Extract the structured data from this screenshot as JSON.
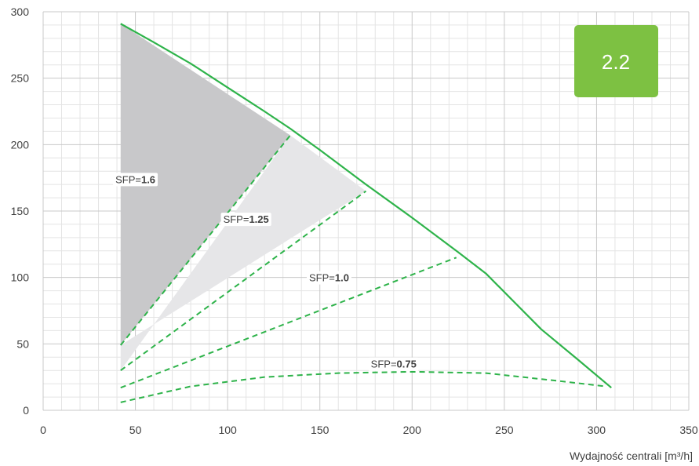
{
  "chart_data": {
    "type": "line",
    "xlabel": "Wydajność centrali [m³/h]",
    "ylabel": "",
    "xlim": [
      0,
      350
    ],
    "ylim": [
      0,
      300
    ],
    "x_ticks": [
      0,
      50,
      100,
      150,
      200,
      250,
      300,
      350
    ],
    "y_ticks": [
      0,
      50,
      100,
      150,
      200,
      250,
      300
    ],
    "x_tick_labels": [
      "0",
      "50",
      "100",
      "150",
      "200",
      "250",
      "300",
      "350"
    ],
    "y_tick_labels": [
      "0",
      "50",
      "100",
      "150",
      "200",
      "250",
      "300"
    ],
    "grid": true,
    "badge": {
      "text": "2.2",
      "color": "#7dc142"
    },
    "colors": {
      "curve": "#2eb34a",
      "dark_area": "#c8c8ca",
      "light_area": "#e6e6e8",
      "grid_major": "#c8c8c8",
      "grid_minor": "#e4e4e4"
    },
    "series": [
      {
        "style": "solid",
        "x": [
          42,
          60,
          80,
          100,
          120,
          134,
          150,
          175,
          200,
          225,
          240,
          255,
          270,
          290,
          308
        ],
        "y": [
          291,
          277,
          261,
          243,
          225,
          212,
          196,
          170,
          145,
          119,
          103,
          82,
          61,
          38,
          17
        ]
      },
      {
        "name": "SFP=1.6",
        "style": "dashed",
        "x": [
          42,
          134
        ],
        "y": [
          49,
          207
        ]
      },
      {
        "name": "SFP=1.25",
        "style": "dashed",
        "x": [
          42,
          175
        ],
        "y": [
          30,
          165
        ]
      },
      {
        "name": "SFP=1.0",
        "style": "dashed",
        "x": [
          42,
          224
        ],
        "y": [
          17,
          115
        ]
      },
      {
        "name": "SFP=0.75",
        "style": "dashed",
        "x": [
          42,
          80,
          120,
          160,
          200,
          240,
          280,
          305
        ],
        "y": [
          6,
          18,
          25,
          28,
          29,
          28,
          22,
          18
        ]
      }
    ],
    "shaded_regions": [
      {
        "fill": "dark",
        "x": [
          42,
          42,
          134
        ],
        "y": [
          49,
          291,
          207
        ]
      },
      {
        "fill": "light",
        "x": [
          42,
          134,
          175,
          42
        ],
        "y": [
          30,
          207,
          165,
          49
        ]
      }
    ],
    "annotations": [
      {
        "prefix": "SFP=",
        "value": "1.6",
        "x": 50,
        "y": 174
      },
      {
        "prefix": "SFP=",
        "value": "1.25",
        "x": 110,
        "y": 144
      },
      {
        "prefix": "SFP=",
        "value": "1.0",
        "x": 155,
        "y": 100
      },
      {
        "prefix": "SFP=",
        "value": "0.75",
        "x": 190,
        "y": 35
      }
    ]
  }
}
